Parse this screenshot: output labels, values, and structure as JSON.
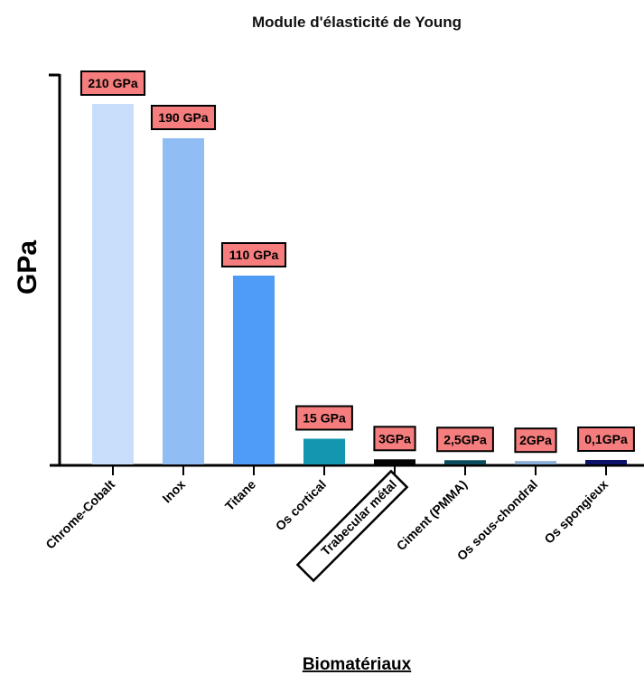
{
  "chart_data": {
    "type": "bar",
    "title": "Module d'élasticité de Young",
    "xlabel": "Biomatériaux",
    "ylabel": "GPa",
    "categories": [
      "Chrome-Cobalt",
      "Inox",
      "Titane",
      "Os cortical",
      "Trabecular métal",
      "Ciment (PMMA)",
      "Os sous-chondral",
      "Os spongieux"
    ],
    "values": [
      210,
      190,
      110,
      15,
      3,
      2.5,
      2,
      0.1
    ],
    "data_labels": [
      "210 GPa",
      "190 GPa",
      "110 GPa",
      "15 GPa",
      "3GPa",
      "2,5GPa",
      "2GPa",
      "0,1GPa"
    ],
    "colors": [
      "#c9defa",
      "#91bdf5",
      "#4f9cf7",
      "#1397b0",
      "#050505",
      "#0b4d5f",
      "#8aaed8",
      "#0b1268"
    ],
    "label_bg": "#f57d7d",
    "highlighted_category": "Trabecular métal",
    "grid": false
  }
}
